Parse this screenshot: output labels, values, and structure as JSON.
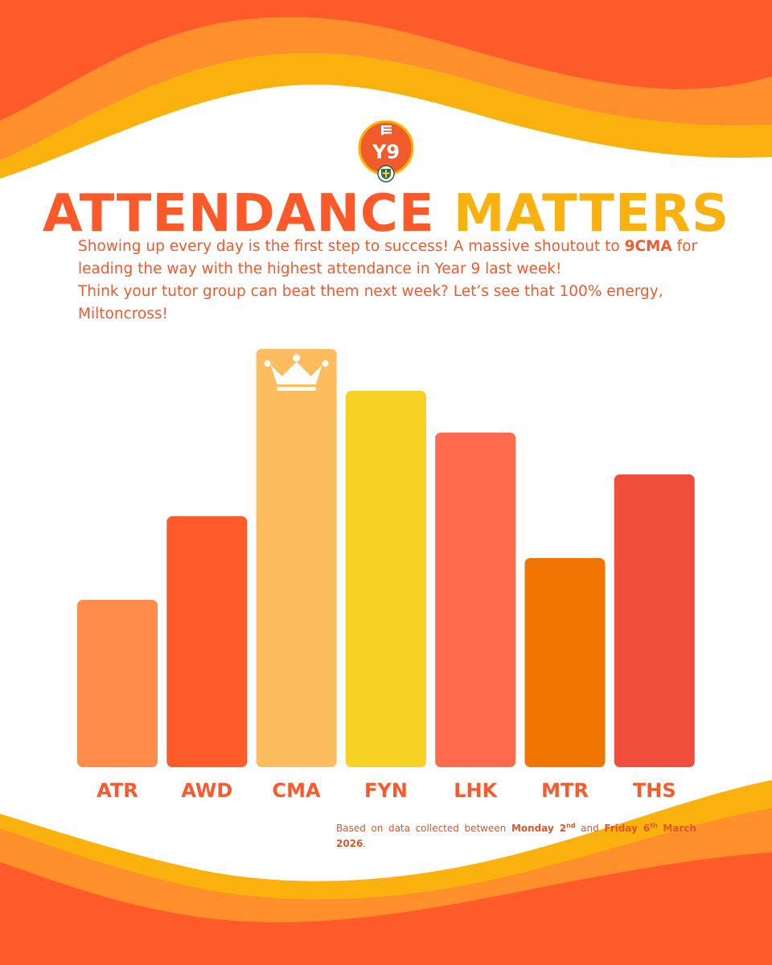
{
  "poster": {
    "logo": {
      "badge_text": "Y9"
    },
    "headline": {
      "word1": "ATTENDANCE",
      "word2": "MATTERS"
    },
    "intro": {
      "line1_a": "Showing up every day is the first step to success! A massive shoutout to ",
      "line1_highlight": "9CMA",
      "line1_b": " for leading the way with the highest attendance in Year 9 last week!",
      "line2": "Think your tutor group can beat them next week? Let’s see that 100% energy, Miltoncross!"
    },
    "footnote": {
      "prefix": "Based on data collected between ",
      "start_day": "Monday 2",
      "start_sup": "nd",
      "middle": " and ",
      "end_day": "Friday 6",
      "end_sup": "th",
      "end_month": "March 2026",
      "suffix": "."
    }
  },
  "colors": {
    "orange_dark": "#ff5a2a",
    "orange_mid": "#ff8f2b",
    "yellow": "#fbb10d",
    "headline_orange": "#fa5a2a",
    "headline_yellow": "#f9b10f"
  },
  "chart_data": {
    "type": "bar",
    "title": "",
    "xlabel": "",
    "ylabel": "",
    "categories": [
      "ATR",
      "AWD",
      "CMA",
      "FYN",
      "LHK",
      "MTR",
      "THS"
    ],
    "values": [
      40,
      60,
      100,
      90,
      80,
      50,
      70
    ],
    "value_units": "relative bar height (% of tallest); no axis shown",
    "ylim": [
      0,
      100
    ],
    "bar_colors": [
      "#ff8c4a",
      "#ff5a2a",
      "#fdbc5e",
      "#f7d024",
      "#ff6a4d",
      "#f07400",
      "#ef4e3d"
    ],
    "label_color": "#f75b2d",
    "highlight": {
      "category": "CMA",
      "icon": "crown-icon"
    },
    "grid": false,
    "legend": "none"
  }
}
